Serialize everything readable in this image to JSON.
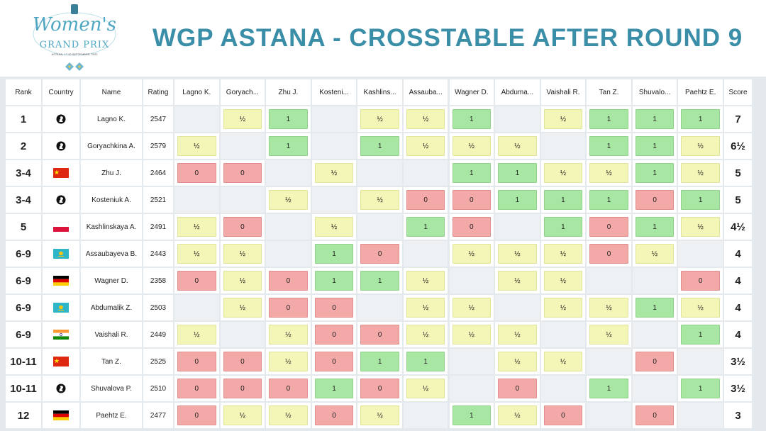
{
  "header": {
    "logo": {
      "line1": "Women's",
      "line2": "GRAND PRIX",
      "line3": "ASTANA, 17-30 SEPTEMBER, 2022"
    },
    "title": "WGP ASTANA - CROSSTABLE AFTER ROUND 9"
  },
  "table": {
    "columns": [
      "Rank",
      "Country",
      "Name",
      "Rating",
      "Lagno K.",
      "Goryach...",
      "Zhu J.",
      "Kosteni...",
      "Kashlins...",
      "Assauba...",
      "Wagner D.",
      "Abduma...",
      "Vaishali R.",
      "Tan Z.",
      "Shuvalo...",
      "Paehtz E.",
      "Score"
    ],
    "rows": [
      {
        "rank": "1",
        "name": "Lagno K.",
        "rating": 2547,
        "results": [
          null,
          "½",
          "1",
          null,
          "½",
          "½",
          "1",
          null,
          "½",
          "1",
          "1",
          "1"
        ],
        "score": "7"
      },
      {
        "rank": "2",
        "name": "Goryachkina A.",
        "rating": 2579,
        "results": [
          "½",
          null,
          "1",
          null,
          "1",
          "½",
          "½",
          "½",
          null,
          "1",
          "1",
          "½"
        ],
        "score": "6½"
      },
      {
        "rank": "3-4",
        "name": "Zhu J.",
        "rating": 2464,
        "results": [
          "0",
          "0",
          null,
          "½",
          null,
          null,
          "1",
          "1",
          "½",
          "½",
          "1",
          "½"
        ],
        "score": "5"
      },
      {
        "rank": "3-4",
        "name": "Kosteniuk A.",
        "rating": 2521,
        "results": [
          null,
          null,
          "½",
          null,
          "½",
          "0",
          "0",
          "1",
          "1",
          "1",
          "0",
          "1"
        ],
        "score": "5"
      },
      {
        "rank": "5",
        "name": "Kashlinskaya A.",
        "rating": 2491,
        "results": [
          "½",
          "0",
          null,
          "½",
          null,
          "1",
          "0",
          null,
          "1",
          "0",
          "1",
          "½"
        ],
        "score": "4½"
      },
      {
        "rank": "6-9",
        "name": "Assaubayeva B.",
        "rating": 2443,
        "results": [
          "½",
          "½",
          null,
          "1",
          "0",
          null,
          "½",
          "½",
          "½",
          "0",
          "½",
          null
        ],
        "score": "4"
      },
      {
        "rank": "6-9",
        "name": "Wagner D.",
        "rating": 2358,
        "results": [
          "0",
          "½",
          "0",
          "1",
          "1",
          "½",
          null,
          "½",
          "½",
          null,
          null,
          "0"
        ],
        "score": "4"
      },
      {
        "rank": "6-9",
        "name": "Abdumalik Z.",
        "rating": 2503,
        "results": [
          null,
          "½",
          "0",
          "0",
          null,
          "½",
          "½",
          null,
          "½",
          "½",
          "1",
          "½"
        ],
        "score": "4"
      },
      {
        "rank": "6-9",
        "name": "Vaishali R.",
        "rating": 2449,
        "results": [
          "½",
          null,
          "½",
          "0",
          "0",
          "½",
          "½",
          "½",
          null,
          "½",
          null,
          "1"
        ],
        "score": "4"
      },
      {
        "rank": "10-11",
        "name": "Tan Z.",
        "rating": 2525,
        "results": [
          "0",
          "0",
          "½",
          "0",
          "1",
          "1",
          null,
          "½",
          "½",
          null,
          "0",
          null
        ],
        "score": "3½"
      },
      {
        "rank": "10-11",
        "name": "Shuvalova P.",
        "rating": 2510,
        "results": [
          "0",
          "0",
          "0",
          "1",
          "0",
          "½",
          null,
          "0",
          null,
          "1",
          null,
          "1"
        ],
        "score": "3½"
      },
      {
        "rank": "12",
        "name": "Paehtz E.",
        "rating": 2477,
        "results": [
          "0",
          "½",
          "½",
          "0",
          "½",
          null,
          "1",
          "½",
          "0",
          null,
          "0",
          null
        ],
        "score": "3"
      }
    ]
  }
}
